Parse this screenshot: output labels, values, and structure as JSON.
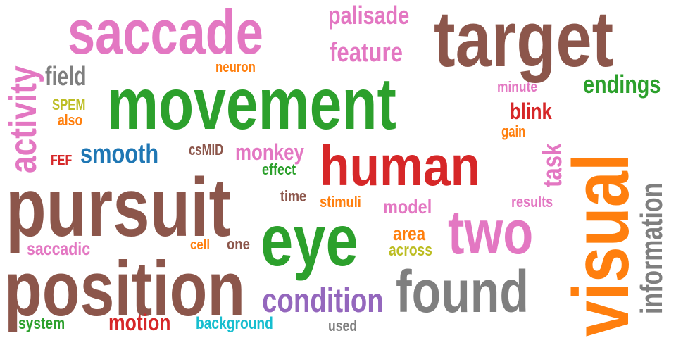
{
  "palette": {
    "brown": "#8c564b",
    "pink": "#e377c2",
    "green": "#2ca02c",
    "red": "#d62728",
    "orange": "#ff7f0e",
    "gray": "#7f7f7f",
    "blue": "#1f77b4",
    "purple": "#9467bd",
    "olive": "#bcbd22",
    "cyan": "#17becf"
  },
  "words": [
    {
      "text": "movement",
      "color": "#2ca02c"
    },
    {
      "text": "pursuit",
      "color": "#8c564b"
    },
    {
      "text": "target",
      "color": "#8c564b"
    },
    {
      "text": "eye",
      "color": "#2ca02c"
    },
    {
      "text": "saccade",
      "color": "#e377c2"
    },
    {
      "text": "position",
      "color": "#8c564b"
    },
    {
      "text": "visual",
      "color": "#ff7f0e"
    },
    {
      "text": "human",
      "color": "#d62728"
    },
    {
      "text": "two",
      "color": "#e377c2"
    },
    {
      "text": "found",
      "color": "#7f7f7f"
    },
    {
      "text": "activity",
      "color": "#e377c2"
    },
    {
      "text": "condition",
      "color": "#9467bd"
    },
    {
      "text": "information",
      "color": "#7f7f7f"
    },
    {
      "text": "smooth",
      "color": "#1f77b4"
    },
    {
      "text": "feature",
      "color": "#e377c2"
    },
    {
      "text": "palisade",
      "color": "#e377c2"
    },
    {
      "text": "task",
      "color": "#e377c2"
    },
    {
      "text": "endings",
      "color": "#2ca02c"
    },
    {
      "text": "monkey",
      "color": "#e377c2"
    },
    {
      "text": "motion",
      "color": "#d62728"
    },
    {
      "text": "blink",
      "color": "#d62728"
    },
    {
      "text": "field",
      "color": "#7f7f7f"
    },
    {
      "text": "model",
      "color": "#e377c2"
    },
    {
      "text": "area",
      "color": "#ff7f0e"
    },
    {
      "text": "saccadic",
      "color": "#e377c2"
    },
    {
      "text": "background",
      "color": "#17becf"
    },
    {
      "text": "across",
      "color": "#bcbd22"
    },
    {
      "text": "system",
      "color": "#2ca02c"
    },
    {
      "text": "results",
      "color": "#e377c2"
    },
    {
      "text": "stimuli",
      "color": "#ff7f0e"
    },
    {
      "text": "csMID",
      "color": "#8c564b"
    },
    {
      "text": "used",
      "color": "#7f7f7f"
    },
    {
      "text": "effect",
      "color": "#2ca02c"
    },
    {
      "text": "time",
      "color": "#8c564b"
    },
    {
      "text": "minute",
      "color": "#e377c2"
    },
    {
      "text": "neuron",
      "color": "#ff7f0e"
    },
    {
      "text": "SPEM",
      "color": "#bcbd22"
    },
    {
      "text": "also",
      "color": "#ff7f0e"
    },
    {
      "text": "gain",
      "color": "#ff7f0e"
    },
    {
      "text": "one",
      "color": "#8c564b"
    },
    {
      "text": "cell",
      "color": "#ff7f0e"
    },
    {
      "text": "FEF",
      "color": "#d62728"
    }
  ]
}
